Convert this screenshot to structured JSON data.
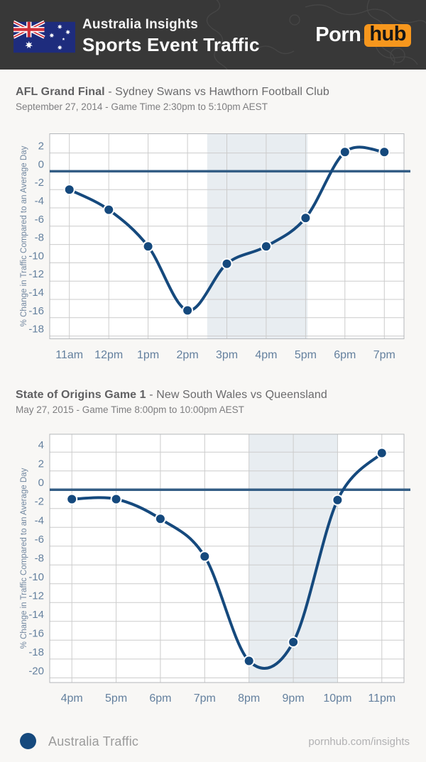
{
  "header": {
    "line1": "Australia Insights",
    "line2": "Sports Event Traffic",
    "logo_part1": "Porn",
    "logo_part2": "hub"
  },
  "sections": [
    {
      "title_bold": "AFL Grand Final",
      "title_rest": " - Sydney Swans vs Hawthorn Football Club",
      "subtitle": "September 27, 2014 - Game Time 2:30pm to 5:10pm AEST"
    },
    {
      "title_bold": "State of Origins Game 1",
      "title_rest": " - New South Wales vs Queensland",
      "subtitle": "May 27, 2015 - Game Time 8:00pm to 10:00pm AEST"
    }
  ],
  "chart_data": [
    {
      "type": "line",
      "title": "AFL Grand Final - Sydney Swans vs Hawthorn Football Club",
      "subtitle": "September 27, 2014 - Game Time 2:30pm to 5:10pm AEST",
      "ylabel": "% Change in Traffic Compared to an Average Day",
      "categories": [
        "11am",
        "12pm",
        "1pm",
        "2pm",
        "3pm",
        "4pm",
        "5pm",
        "6pm",
        "7pm"
      ],
      "series": [
        {
          "name": "Australia Traffic",
          "values": [
            -2,
            -4.2,
            -8.2,
            -15.2,
            -10.1,
            -8.2,
            -5.1,
            2.1,
            2.1
          ]
        }
      ],
      "yticks": [
        2,
        0,
        -2,
        -4,
        -6,
        -8,
        -10,
        -12,
        -14,
        -16,
        -18
      ],
      "ylim": [
        -18.3,
        4.1
      ],
      "baseline": 0,
      "grid": true,
      "game_window": {
        "label": "Game Time 2:30pm to 5:10pm",
        "start_index": 3.5,
        "end_index": 6.05
      }
    },
    {
      "type": "line",
      "title": "State of Origins Game 1 - New South Wales vs Queensland",
      "subtitle": "May 27, 2015 - Game Time 8:00pm to 10:00pm AEST",
      "ylabel": "% Change in Traffic Compared to an Average Day",
      "categories": [
        "4pm",
        "5pm",
        "6pm",
        "7pm",
        "8pm",
        "9pm",
        "10pm",
        "11pm"
      ],
      "series": [
        {
          "name": "Australia Traffic",
          "values": [
            -1,
            -1,
            -3.1,
            -7.1,
            -18.2,
            -16.2,
            -1.1,
            3.9
          ]
        }
      ],
      "yticks": [
        4,
        2,
        0,
        -2,
        -4,
        -6,
        -8,
        -10,
        -12,
        -14,
        -16,
        -18,
        -20
      ],
      "ylim": [
        -20.5,
        5.9
      ],
      "baseline": 0,
      "grid": true,
      "game_window": {
        "label": "Game Time 8:00pm to 10:00pm",
        "start_index": 4,
        "end_index": 6
      }
    }
  ],
  "footer": {
    "legend_label": "Australia Traffic",
    "link": "pornhub.com/insights"
  },
  "colors": {
    "header_bg": "#383838",
    "logo_orange": "#f7971d",
    "series": "#15497d",
    "zero_line": "#335d85",
    "band": "#e8edf1",
    "grid": "#cccccc",
    "plot_border": "#b4b7bb",
    "tick_text": "#64809e",
    "flag_blue": "#1e2c7d",
    "flag_red": "#cf2e38"
  }
}
